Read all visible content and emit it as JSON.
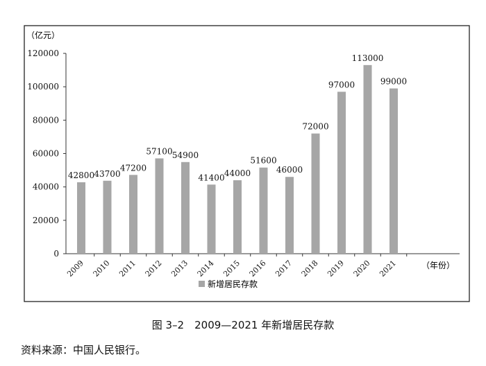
{
  "chart_data": {
    "type": "bar",
    "title": "",
    "ylabel": "（亿元）",
    "xlabel": "（年份）",
    "ylim": [
      0,
      120000
    ],
    "yticks": [
      0,
      20000,
      40000,
      60000,
      80000,
      100000,
      120000
    ],
    "categories": [
      "2009",
      "2010",
      "2011",
      "2012",
      "2013",
      "2014",
      "2015",
      "2016",
      "2017",
      "2018",
      "2019",
      "2020",
      "2021"
    ],
    "series": [
      {
        "name": "新增居民存款",
        "values": [
          42800,
          43700,
          47200,
          57100,
          54900,
          41400,
          44000,
          51600,
          46000,
          72000,
          97000,
          113000,
          99000
        ]
      }
    ],
    "bar_color": "#a6a6a6",
    "legend_position": "bottom-center"
  },
  "caption": "图 3–2　2009—2021 年新增居民存款",
  "source": "资料来源：中国人民银行。"
}
